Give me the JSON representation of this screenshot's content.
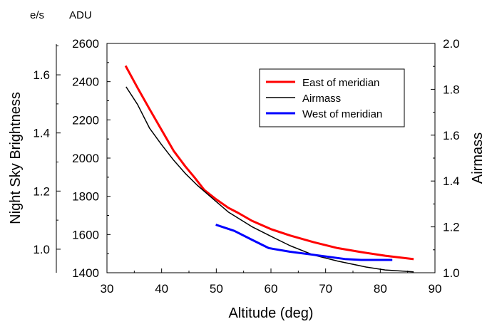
{
  "chart_data": {
    "type": "line",
    "xlabel": "Altitude (deg)",
    "ylabel": "Night Sky Brightness",
    "ylabel_right": "Airmass",
    "y_unit_left_outer": "e/s",
    "y_unit_left_inner": "ADU",
    "xlim": [
      30,
      90
    ],
    "xticks": [
      "30",
      "40",
      "50",
      "60",
      "70",
      "80",
      "90"
    ],
    "ylim_adu": [
      1400,
      2600
    ],
    "yticks_adu": [
      "1400",
      "1600",
      "1800",
      "2000",
      "2200",
      "2400",
      "2600"
    ],
    "ylim_es": [
      0.919,
      1.708
    ],
    "yticks_es": [
      "1.0",
      "1.2",
      "1.4",
      "1.6"
    ],
    "ylim_right": [
      1.0,
      2.0
    ],
    "yticks_right": [
      "1.0",
      "1.2",
      "1.4",
      "1.6",
      "1.8",
      "2.0"
    ],
    "grid": false,
    "legend_position": "top-right",
    "series": [
      {
        "name": "East of meridian",
        "axis": "adu",
        "color": "#ff0000",
        "x": [
          33.4,
          35.6,
          37.8,
          39.8,
          42.2,
          44.3,
          46.1,
          47.8,
          50.0,
          52.2,
          53.9,
          56.5,
          60.0,
          63.5,
          67.8,
          72.2,
          76.5,
          80.9,
          86.1
        ],
        "y": [
          2483,
          2368,
          2256,
          2157,
          2038,
          1958,
          1896,
          1833,
          1784,
          1740,
          1715,
          1672,
          1628,
          1595,
          1560,
          1529,
          1508,
          1489,
          1471
        ]
      },
      {
        "name": "Airmass",
        "axis": "right",
        "color": "#000000",
        "x": [
          33.5,
          35.6,
          37.8,
          40.0,
          42.2,
          44.3,
          46.5,
          50.0,
          52.2,
          56.5,
          60.0,
          63.5,
          67.8,
          72.2,
          77.4,
          80.9,
          86.1
        ],
        "y": [
          1.811,
          1.734,
          1.63,
          1.558,
          1.491,
          1.434,
          1.382,
          1.31,
          1.265,
          1.201,
          1.159,
          1.118,
          1.077,
          1.051,
          1.025,
          1.012,
          1.004
        ]
      },
      {
        "name": "West of meridian",
        "axis": "adu",
        "color": "#0000ff",
        "x": [
          49.9,
          53.3,
          56.5,
          59.6,
          63.5,
          67.8,
          73.5,
          76.5,
          82.2
        ],
        "y": [
          1651,
          1619,
          1573,
          1529,
          1510,
          1494,
          1472,
          1467,
          1467
        ]
      }
    ]
  }
}
